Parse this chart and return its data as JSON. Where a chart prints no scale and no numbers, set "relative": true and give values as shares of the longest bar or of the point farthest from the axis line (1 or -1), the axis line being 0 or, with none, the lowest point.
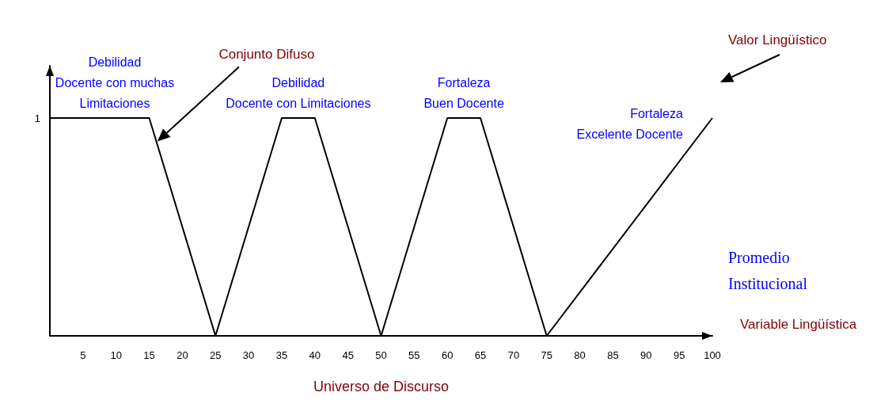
{
  "chart_data": {
    "type": "line",
    "xlabel": "Universo de Discurso",
    "series": [
      {
        "name": "Debilidad\nDocente con muchas\nLimitaciones",
        "color": "#000000",
        "x": [
          0,
          15,
          25
        ],
        "values": [
          1,
          1,
          0
        ]
      },
      {
        "name": "Debilidad\nDocente con Limitaciones",
        "color": "#000000",
        "x": [
          25,
          35,
          40,
          50
        ],
        "values": [
          0,
          1,
          1,
          0
        ]
      },
      {
        "name": "Fortaleza\nBuen Docente",
        "color": "#000000",
        "x": [
          50,
          60,
          65,
          75
        ],
        "values": [
          0,
          1,
          1,
          0
        ]
      },
      {
        "name": "Fortaleza\nExcelente Docente",
        "color": "#000000",
        "x": [
          75,
          100
        ],
        "values": [
          0,
          1
        ]
      }
    ],
    "relative": true,
    "xlim": [
      0,
      100
    ],
    "xticks": [
      5,
      10,
      15,
      20,
      25,
      30,
      35,
      40,
      45,
      50,
      55,
      60,
      65,
      70,
      75,
      80,
      85,
      90,
      95,
      100
    ],
    "annotations": [
      "1",
      "Conjunto Difuso",
      "Valor Lingüístico",
      "Promedio\nInstitucional",
      "Variable Lingüística"
    ],
    "grid": false,
    "legend": false,
    "marker": "none",
    "line_style": "solid"
  }
}
